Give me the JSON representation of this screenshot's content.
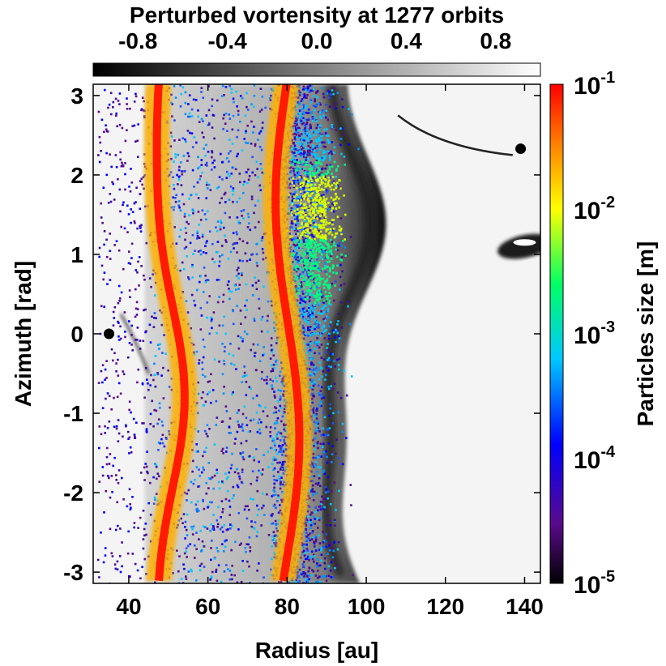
{
  "chart_data": {
    "type": "scatter",
    "title": "Perturbed vortensity at 1277 orbits",
    "xlabel": "Radius [au]",
    "ylabel": "Azimuth [rad]",
    "xlim": [
      31,
      144
    ],
    "ylim": [
      -3.14159,
      3.14159
    ],
    "x_ticks": [
      "40",
      "60",
      "80",
      "100",
      "120",
      "140"
    ],
    "y_ticks": [
      "3",
      "2",
      "1",
      "0",
      "-1",
      "-2",
      "-3"
    ],
    "grid": false,
    "vortensity_colorbar": {
      "range": [
        -1.0,
        1.0
      ],
      "tick_labels": [
        "-0.8",
        "-0.4",
        "0.0",
        "0.4",
        "0.8"
      ],
      "colors": [
        "#000000",
        "#ffffff"
      ]
    },
    "size_colorbar": {
      "label": "Particles size [m]",
      "scale": "log",
      "range": [
        1e-05,
        0.1
      ],
      "tick_labels": [
        {
          "base": "10",
          "exp": "-1"
        },
        {
          "base": "10",
          "exp": "-2"
        },
        {
          "base": "10",
          "exp": "-3"
        },
        {
          "base": "10",
          "exp": "-4"
        },
        {
          "base": "10",
          "exp": "-5"
        }
      ],
      "colors": [
        "#000000",
        "#5a0a8c",
        "#0000ff",
        "#00c8ff",
        "#00ff64",
        "#ffff00",
        "#ff8000",
        "#ff0000"
      ]
    },
    "planets": [
      {
        "x": 35,
        "y": 0.0
      },
      {
        "x": 139,
        "y": 2.33
      }
    ],
    "dust_rings": [
      {
        "name": "inner ring",
        "radius_au": 50,
        "max_size_m": 0.1
      },
      {
        "name": "outer ring",
        "radius_au": 80,
        "max_size_m": 0.1
      }
    ],
    "gas_disc_outer_edge_au": 100
  }
}
